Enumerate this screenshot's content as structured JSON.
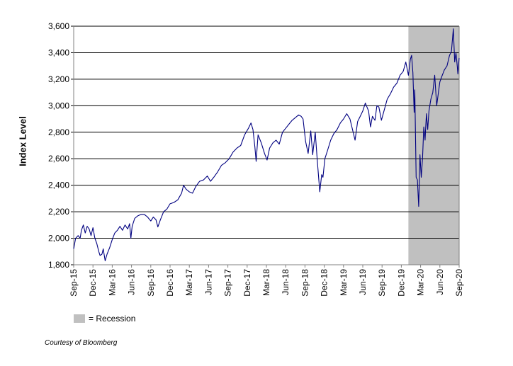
{
  "chart_data": {
    "type": "line",
    "title": "",
    "xlabel": "",
    "ylabel": "Index Level",
    "ylim": [
      1800,
      3600
    ],
    "yticks": [
      "1,800",
      "2,000",
      "2,200",
      "2,400",
      "2,600",
      "2,800",
      "3,000",
      "3,200",
      "3,400",
      "3,600"
    ],
    "ytick_values": [
      1800,
      2000,
      2200,
      2400,
      2600,
      2800,
      3000,
      3200,
      3400,
      3600
    ],
    "xlim_months": [
      0,
      60
    ],
    "xticks": [
      "Sep-15",
      "Dec-15",
      "Mar-16",
      "Jun-16",
      "Sep-16",
      "Dec-16",
      "Mar-17",
      "Jun-17",
      "Sep-17",
      "Dec-17",
      "Mar-18",
      "Jun-18",
      "Sep-18",
      "Dec-18",
      "Mar-19",
      "Jun-19",
      "Sep-19",
      "Dec-19",
      "Mar-20",
      "Jun-20",
      "Sep-20"
    ],
    "grid": "horizontal",
    "line_color": "#000080",
    "recession_color": "#c0c0c0",
    "recession_months": [
      52.1,
      60
    ],
    "series": [
      {
        "name": "Index Level",
        "months": [
          0,
          0.3,
          0.7,
          1.0,
          1.2,
          1.5,
          1.8,
          2.1,
          2.4,
          2.7,
          3.0,
          3.3,
          3.6,
          3.9,
          4.1,
          4.4,
          4.6,
          4.9,
          5.2,
          5.6,
          6.0,
          6.4,
          6.8,
          7.2,
          7.6,
          8.0,
          8.4,
          8.7,
          8.9,
          9.1,
          9.5,
          10.0,
          10.5,
          11.0,
          11.5,
          12.0,
          12.4,
          12.8,
          13.1,
          13.5,
          14.0,
          14.5,
          15.0,
          15.6,
          16.2,
          16.8,
          17.1,
          17.5,
          18.0,
          18.5,
          19.0,
          19.6,
          20.2,
          20.8,
          21.3,
          21.8,
          22.4,
          23.0,
          23.6,
          24.2,
          24.8,
          25.4,
          26.0,
          26.6,
          27.2,
          27.6,
          27.9,
          28.2,
          28.4,
          28.7,
          29.2,
          29.7,
          30.1,
          30.5,
          31.0,
          31.5,
          32.0,
          32.5,
          33.0,
          33.5,
          34.0,
          34.5,
          35.0,
          35.4,
          35.7,
          36.1,
          36.5,
          36.9,
          37.2,
          37.6,
          37.9,
          38.3,
          38.6,
          38.8,
          39.1,
          39.5,
          40.0,
          40.5,
          41.0,
          41.5,
          42.0,
          42.5,
          43.0,
          43.4,
          43.8,
          44.2,
          44.6,
          45.0,
          45.4,
          45.9,
          46.2,
          46.5,
          46.9,
          47.2,
          47.5,
          47.9,
          48.3,
          48.8,
          49.3,
          49.8,
          50.3,
          50.8,
          51.3,
          51.7,
          52.1,
          52.4,
          52.6,
          52.8,
          53.0,
          53.1,
          53.3,
          53.5,
          53.7,
          53.9,
          54.1,
          54.3,
          54.5,
          54.7,
          54.9,
          55.1,
          55.3,
          55.6,
          55.9,
          56.2,
          56.5,
          56.8,
          57.0,
          57.3,
          57.7,
          58.1,
          58.5,
          58.8,
          59.1,
          59.3,
          59.5,
          59.7,
          59.8,
          60.0
        ],
        "values": [
          1920,
          2000,
          2020,
          2000,
          2060,
          2100,
          2040,
          2090,
          2070,
          2020,
          2080,
          2000,
          1960,
          1900,
          1870,
          1880,
          1920,
          1830,
          1880,
          1930,
          1990,
          2040,
          2060,
          2090,
          2060,
          2100,
          2070,
          2110,
          2000,
          2090,
          2150,
          2170,
          2180,
          2180,
          2160,
          2130,
          2160,
          2140,
          2085,
          2140,
          2200,
          2220,
          2260,
          2270,
          2290,
          2340,
          2400,
          2370,
          2350,
          2340,
          2390,
          2430,
          2440,
          2470,
          2430,
          2460,
          2500,
          2550,
          2570,
          2600,
          2650,
          2680,
          2700,
          2780,
          2830,
          2870,
          2820,
          2690,
          2580,
          2780,
          2720,
          2640,
          2590,
          2680,
          2720,
          2740,
          2710,
          2800,
          2830,
          2860,
          2890,
          2910,
          2930,
          2920,
          2900,
          2730,
          2640,
          2810,
          2630,
          2800,
          2600,
          2350,
          2480,
          2460,
          2600,
          2660,
          2740,
          2790,
          2820,
          2870,
          2900,
          2940,
          2900,
          2820,
          2740,
          2880,
          2920,
          2960,
          3020,
          2960,
          2840,
          2920,
          2890,
          3000,
          2990,
          2890,
          2960,
          3050,
          3090,
          3140,
          3170,
          3230,
          3260,
          3330,
          3230,
          3350,
          3380,
          3250,
          2950,
          3120,
          2460,
          2440,
          2240,
          2630,
          2460,
          2600,
          2840,
          2740,
          2940,
          2820,
          2960,
          3050,
          3100,
          3230,
          3000,
          3110,
          3180,
          3220,
          3270,
          3300,
          3380,
          3410,
          3580,
          3330,
          3400,
          3300,
          3240,
          3360
        ]
      }
    ],
    "legend_label": "= Recession",
    "legend_position": "bottom-left"
  },
  "footer": {
    "credit": "Courtesy of Bloomberg"
  }
}
